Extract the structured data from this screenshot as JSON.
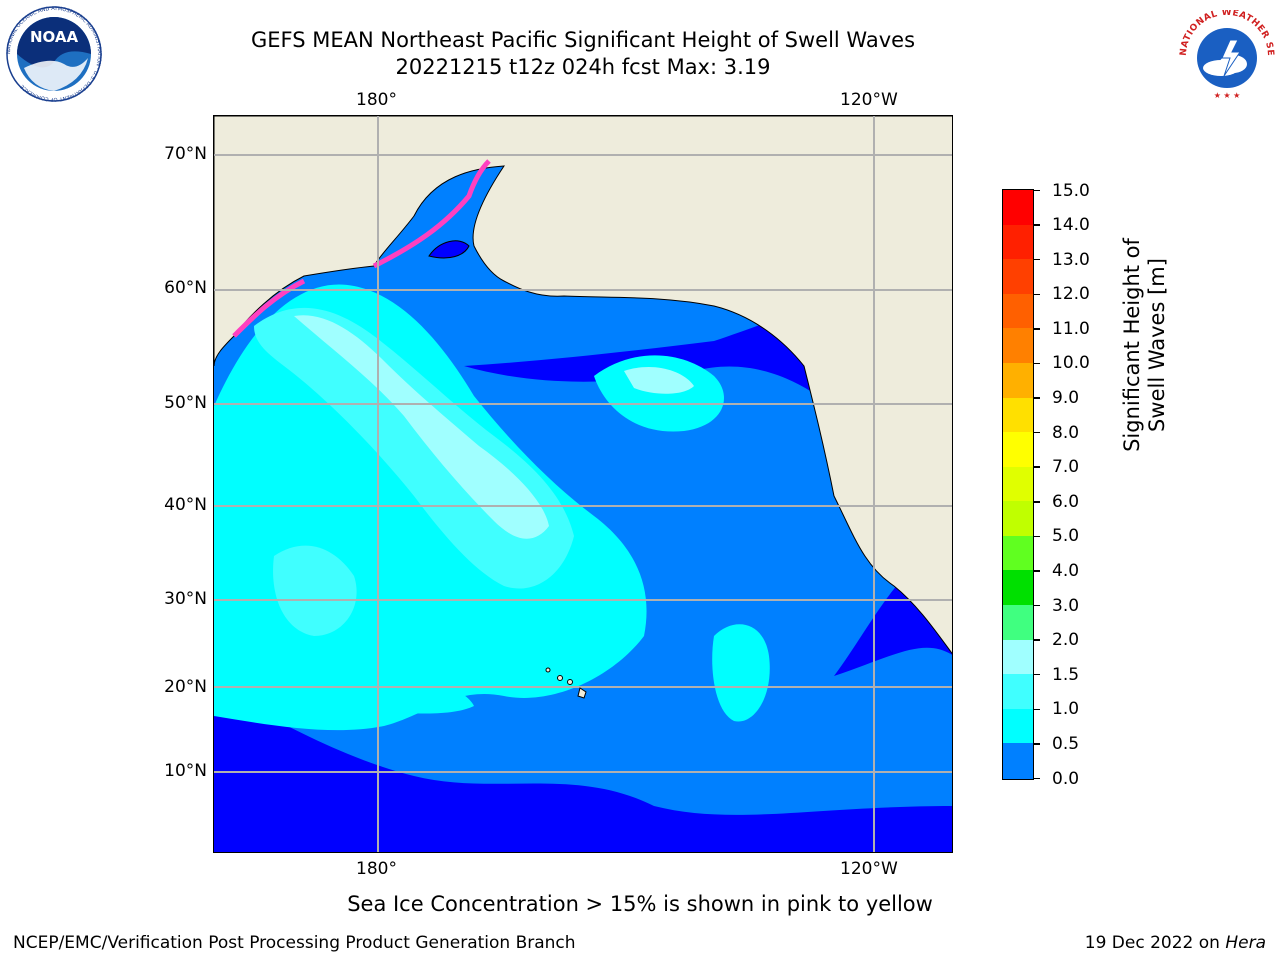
{
  "header": {
    "title_line1": "GEFS MEAN Northeast Pacific Significant Height of Swell Waves",
    "title_line2": "20221215 t12z 024h fcst   Max: 3.19"
  },
  "logos": {
    "noaa_text": "NOAA",
    "noaa_ring_text": "NATIONAL OCEANIC AND ATMOSPHERIC ADMINISTRATION · U.S. DEPARTMENT OF COMMERCE",
    "nws_ring_text": "NATIONAL WEATHER SERVICE"
  },
  "map": {
    "lon_labels_top": [
      "180°",
      "120°W"
    ],
    "lon_labels_bottom": [
      "180°",
      "120°W"
    ],
    "lat_labels": [
      "70°N",
      "60°N",
      "50°N",
      "40°N",
      "30°N",
      "20°N",
      "10°N"
    ],
    "colors": {
      "land": "#eeecdc",
      "ocean_0_05": "#0000ff",
      "ocean_05_10": "#0080ff",
      "ocean_10_15": "#00ffff",
      "ocean_15_20": "#40ffff",
      "ocean_20_30": "#a0ffff",
      "grid": "#b0b0b0",
      "ice": "#ff40c0"
    }
  },
  "colorbar": {
    "label": "Significant Height of Swell Waves [m]",
    "ticks": [
      "15.0",
      "14.0",
      "13.0",
      "12.0",
      "11.0",
      "10.0",
      "9.0",
      "8.0",
      "7.0",
      "6.0",
      "5.0",
      "4.0",
      "3.0",
      "2.0",
      "1.5",
      "1.0",
      "0.5",
      "0.0"
    ],
    "colors": [
      "#ff0000",
      "#ff2000",
      "#ff4000",
      "#ff6000",
      "#ff8000",
      "#ffb000",
      "#ffe000",
      "#ffff00",
      "#e0ff00",
      "#c0ff00",
      "#60ff20",
      "#00e000",
      "#40ff80",
      "#a0ffff",
      "#40ffff",
      "#00ffff",
      "#0080ff",
      "#0000ff"
    ]
  },
  "footer": {
    "ice_note": "Sea Ice Concentration > 15% is shown in pink to yellow",
    "credit": "NCEP/EMC/Verification Post Processing Product Generation Branch",
    "date_prefix": "19 Dec 2022 on ",
    "date_host": "Hera"
  }
}
